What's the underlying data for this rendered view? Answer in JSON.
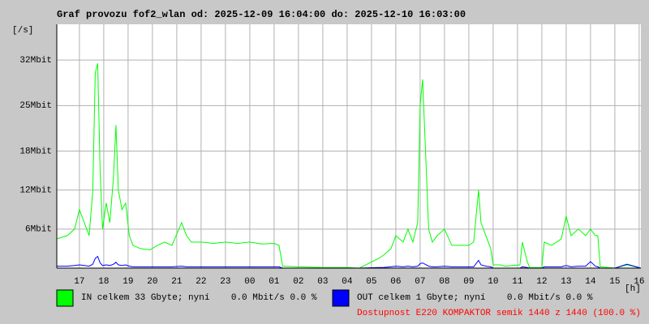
{
  "chart_data": {
    "type": "line",
    "title": "Graf provozu fof2_wlan od: 2025-12-09 16:04:00 do: 2025-12-10 16:03:00",
    "y_label": "[/s]",
    "x_label": "[h]",
    "annotation": "Dostupnost E220 KOMPAKTOR semik 1440 z 1440 (100.0 %)",
    "grid": true,
    "xlim": [
      16.07,
      40.07
    ],
    "ylim": [
      0,
      37.5
    ],
    "yticks": [
      {
        "value": 6,
        "label": "6Mbit"
      },
      {
        "value": 12,
        "label": "12Mbit"
      },
      {
        "value": 18,
        "label": "18Mbit"
      },
      {
        "value": 25,
        "label": "25Mbit"
      },
      {
        "value": 32,
        "label": "32Mbit"
      }
    ],
    "xticks": [
      17,
      18,
      19,
      20,
      21,
      22,
      23,
      {
        "value": 24,
        "label": "00"
      },
      {
        "value": 25,
        "label": "01"
      },
      {
        "value": 26,
        "label": "02"
      },
      {
        "value": 27,
        "label": "03"
      },
      {
        "value": 28,
        "label": "04"
      },
      {
        "value": 29,
        "label": "05"
      },
      {
        "value": 30,
        "label": "06"
      },
      {
        "value": 31,
        "label": "07"
      },
      {
        "value": 32,
        "label": "08"
      },
      {
        "value": 33,
        "label": "09"
      },
      {
        "value": 34,
        "label": "10"
      },
      {
        "value": 35,
        "label": "11"
      },
      {
        "value": 36,
        "label": "12"
      },
      {
        "value": 37,
        "label": "13"
      },
      {
        "value": 38,
        "label": "14"
      },
      {
        "value": 39,
        "label": "15"
      },
      {
        "value": 40,
        "label": "16"
      }
    ],
    "x": [
      16.07,
      16.5,
      16.8,
      17.0,
      17.2,
      17.4,
      17.55,
      17.65,
      17.75,
      17.85,
      17.95,
      18.1,
      18.25,
      18.4,
      18.5,
      18.6,
      18.75,
      18.9,
      19.05,
      19.2,
      19.5,
      19.9,
      20.2,
      20.5,
      20.8,
      21.2,
      21.4,
      21.6,
      22,
      22.5,
      23,
      23.5,
      24,
      24.5,
      25,
      25.2,
      25.35,
      26,
      27,
      28,
      28.5,
      29.3,
      29.5,
      29.8,
      30,
      30.3,
      30.5,
      30.7,
      30.9,
      31,
      31.1,
      31.2,
      31.35,
      31.5,
      31.7,
      32,
      32.3,
      32.6,
      33,
      33.2,
      33.4,
      33.5,
      33.7,
      33.9,
      34,
      34.3,
      34.5,
      35.1,
      35.2,
      35.4,
      35.5,
      36,
      36.1,
      36.4,
      36.8,
      37,
      37.2,
      37.5,
      37.8,
      38,
      38.2,
      38.3,
      38.4,
      39,
      39.5,
      40.07
    ],
    "series": [
      {
        "name": "IN celkem 33 Gbyte; nyní    0.0 Mbit/s 0.0 %",
        "color": "#00ff00",
        "values": [
          4.5,
          5,
          6,
          9,
          7,
          5,
          12,
          30,
          31.5,
          15,
          6,
          10,
          7,
          14,
          22,
          12,
          9,
          10,
          5,
          3.5,
          3,
          2.8,
          3.5,
          4,
          3.5,
          7,
          5,
          4,
          4,
          3.8,
          4,
          3.8,
          4,
          3.7,
          3.8,
          3.5,
          0.3,
          0.2,
          0.1,
          0.1,
          0,
          1.5,
          2,
          3,
          5,
          4,
          6,
          4,
          7,
          25,
          29,
          20,
          6,
          4,
          5,
          6,
          3.5,
          3.5,
          3.5,
          4,
          12,
          7,
          5,
          3,
          0.5,
          0.5,
          0.3,
          0.5,
          4,
          1,
          0.1,
          0.1,
          4,
          3.5,
          4.5,
          8,
          5,
          6,
          5,
          6,
          5,
          5,
          0.2,
          0,
          0.5,
          0
        ]
      },
      {
        "name": "OUT celkem 1 Gbyte; nyní    0.0 Mbit/s 0.0 %",
        "color": "#0000ff",
        "values": [
          0.3,
          0.3,
          0.4,
          0.5,
          0.4,
          0.3,
          0.6,
          1.5,
          1.8,
          0.8,
          0.4,
          0.5,
          0.4,
          0.6,
          0.9,
          0.5,
          0.4,
          0.5,
          0.3,
          0.2,
          0.2,
          0.2,
          0.2,
          0.2,
          0.2,
          0.3,
          0.2,
          0.2,
          0.2,
          0.2,
          0.2,
          0.2,
          0.2,
          0.2,
          0.2,
          0.2,
          0,
          0,
          0,
          0,
          0,
          0.1,
          0.1,
          0.2,
          0.3,
          0.2,
          0.3,
          0.2,
          0.3,
          0.7,
          0.8,
          0.6,
          0.3,
          0.2,
          0.2,
          0.3,
          0.2,
          0.2,
          0.2,
          0.2,
          1.2,
          0.5,
          0.3,
          0.2,
          0,
          0,
          0,
          0,
          0.2,
          0.1,
          0,
          0,
          0.2,
          0.2,
          0.2,
          0.4,
          0.2,
          0.3,
          0.3,
          1.0,
          0.3,
          0.2,
          0,
          0,
          0.6,
          0
        ]
      }
    ]
  }
}
